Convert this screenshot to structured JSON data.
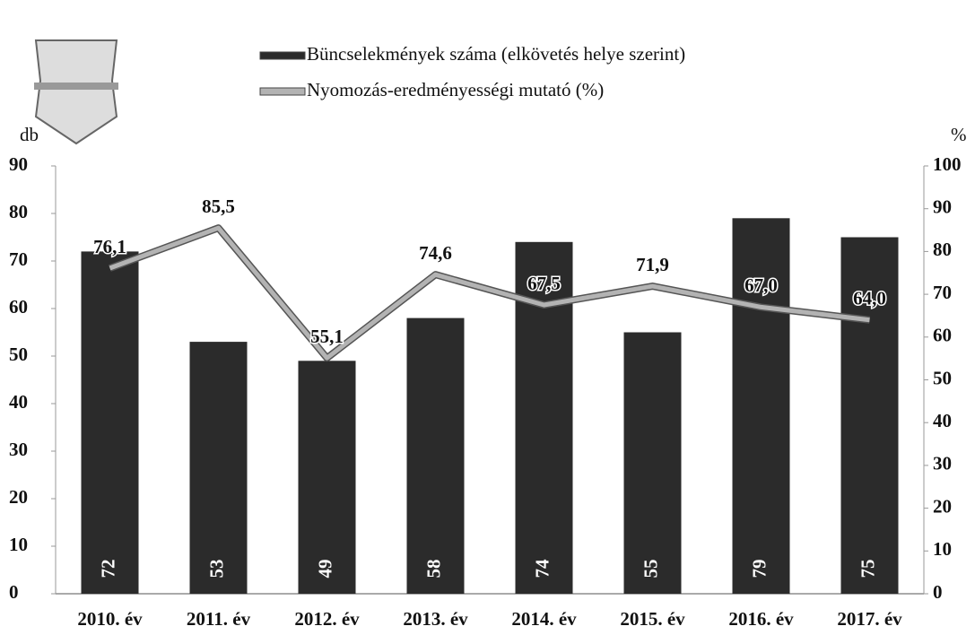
{
  "chart_data": {
    "type": "bar",
    "categories": [
      "2010. év",
      "2011. év",
      "2012. év",
      "2013. év",
      "2014. év",
      "2015. év",
      "2016. év",
      "2017. év"
    ],
    "series": [
      {
        "name": "Büncselekmények száma (elkövetés helye szerint)",
        "color": "#2b2b2b",
        "values": [
          72,
          53,
          49,
          58,
          74,
          55,
          79,
          75
        ]
      },
      {
        "name": "Nyomozás-eredményességi mutató (%)",
        "color": "#b3b3b3",
        "type": "line",
        "axis": "y2",
        "values": [
          76.1,
          85.5,
          55.1,
          74.6,
          67.5,
          71.9,
          67.0,
          64.0
        ],
        "value_labels": [
          "76,1",
          "85,5",
          "55,1",
          "74,6",
          "67,5",
          "71,9",
          "67,0",
          "64,0"
        ]
      }
    ],
    "y_label": "db",
    "y2_label": "%",
    "ylim": [
      0,
      90
    ],
    "yticks": [
      0,
      10,
      20,
      30,
      40,
      50,
      60,
      70,
      80,
      90
    ],
    "y2lim": [
      0,
      100
    ],
    "y2ticks": [
      0,
      10,
      20,
      30,
      40,
      50,
      60,
      70,
      80,
      90,
      100
    ]
  }
}
